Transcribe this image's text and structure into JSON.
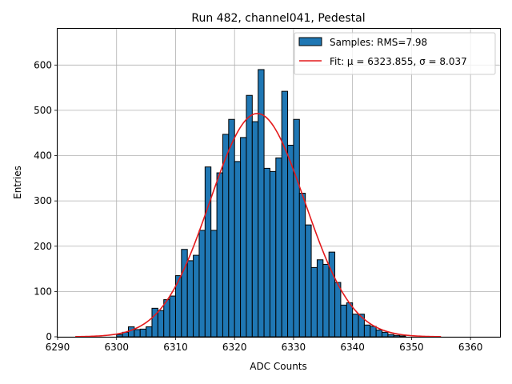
{
  "chart_data": {
    "type": "bar",
    "title": "Run 482, channel041, Pedestal",
    "xlabel": "ADC Counts",
    "ylabel": "Entries",
    "xlim": [
      6290,
      6365
    ],
    "ylim": [
      0,
      680
    ],
    "xticks": [
      6290,
      6300,
      6310,
      6320,
      6330,
      6340,
      6350,
      6360
    ],
    "yticks": [
      0,
      100,
      200,
      300,
      400,
      500,
      600
    ],
    "grid": true,
    "legend_position": "top-right",
    "bin_width": 1,
    "histogram": {
      "name": "Samples: RMS=7.98",
      "color": "#1f77b4",
      "edgecolor": "#000000",
      "bin_starts": [
        6300,
        6301,
        6302,
        6303,
        6304,
        6305,
        6306,
        6307,
        6308,
        6309,
        6310,
        6311,
        6312,
        6313,
        6314,
        6315,
        6316,
        6317,
        6318,
        6319,
        6320,
        6321,
        6322,
        6323,
        6324,
        6325,
        6326,
        6327,
        6328,
        6329,
        6330,
        6331,
        6332,
        6333,
        6334,
        6335,
        6336,
        6337,
        6338,
        6339,
        6340,
        6341,
        6342,
        6343,
        6344,
        6345,
        6346,
        6347,
        6348
      ],
      "counts": [
        5,
        10,
        22,
        16,
        17,
        22,
        63,
        58,
        82,
        90,
        135,
        193,
        168,
        180,
        235,
        375,
        235,
        362,
        447,
        480,
        387,
        440,
        533,
        475,
        590,
        372,
        365,
        395,
        542,
        423,
        480,
        317,
        247,
        153,
        170,
        160,
        187,
        120,
        70,
        75,
        50,
        50,
        26,
        23,
        15,
        10,
        5,
        3,
        2
      ]
    },
    "fit": {
      "name": "Fit: μ = 6323.855, σ = 8.037",
      "color": "#e41a1c",
      "mu": 6323.855,
      "sigma": 8.037,
      "amplitude": 493,
      "x_range": [
        6293,
        6355
      ]
    }
  }
}
